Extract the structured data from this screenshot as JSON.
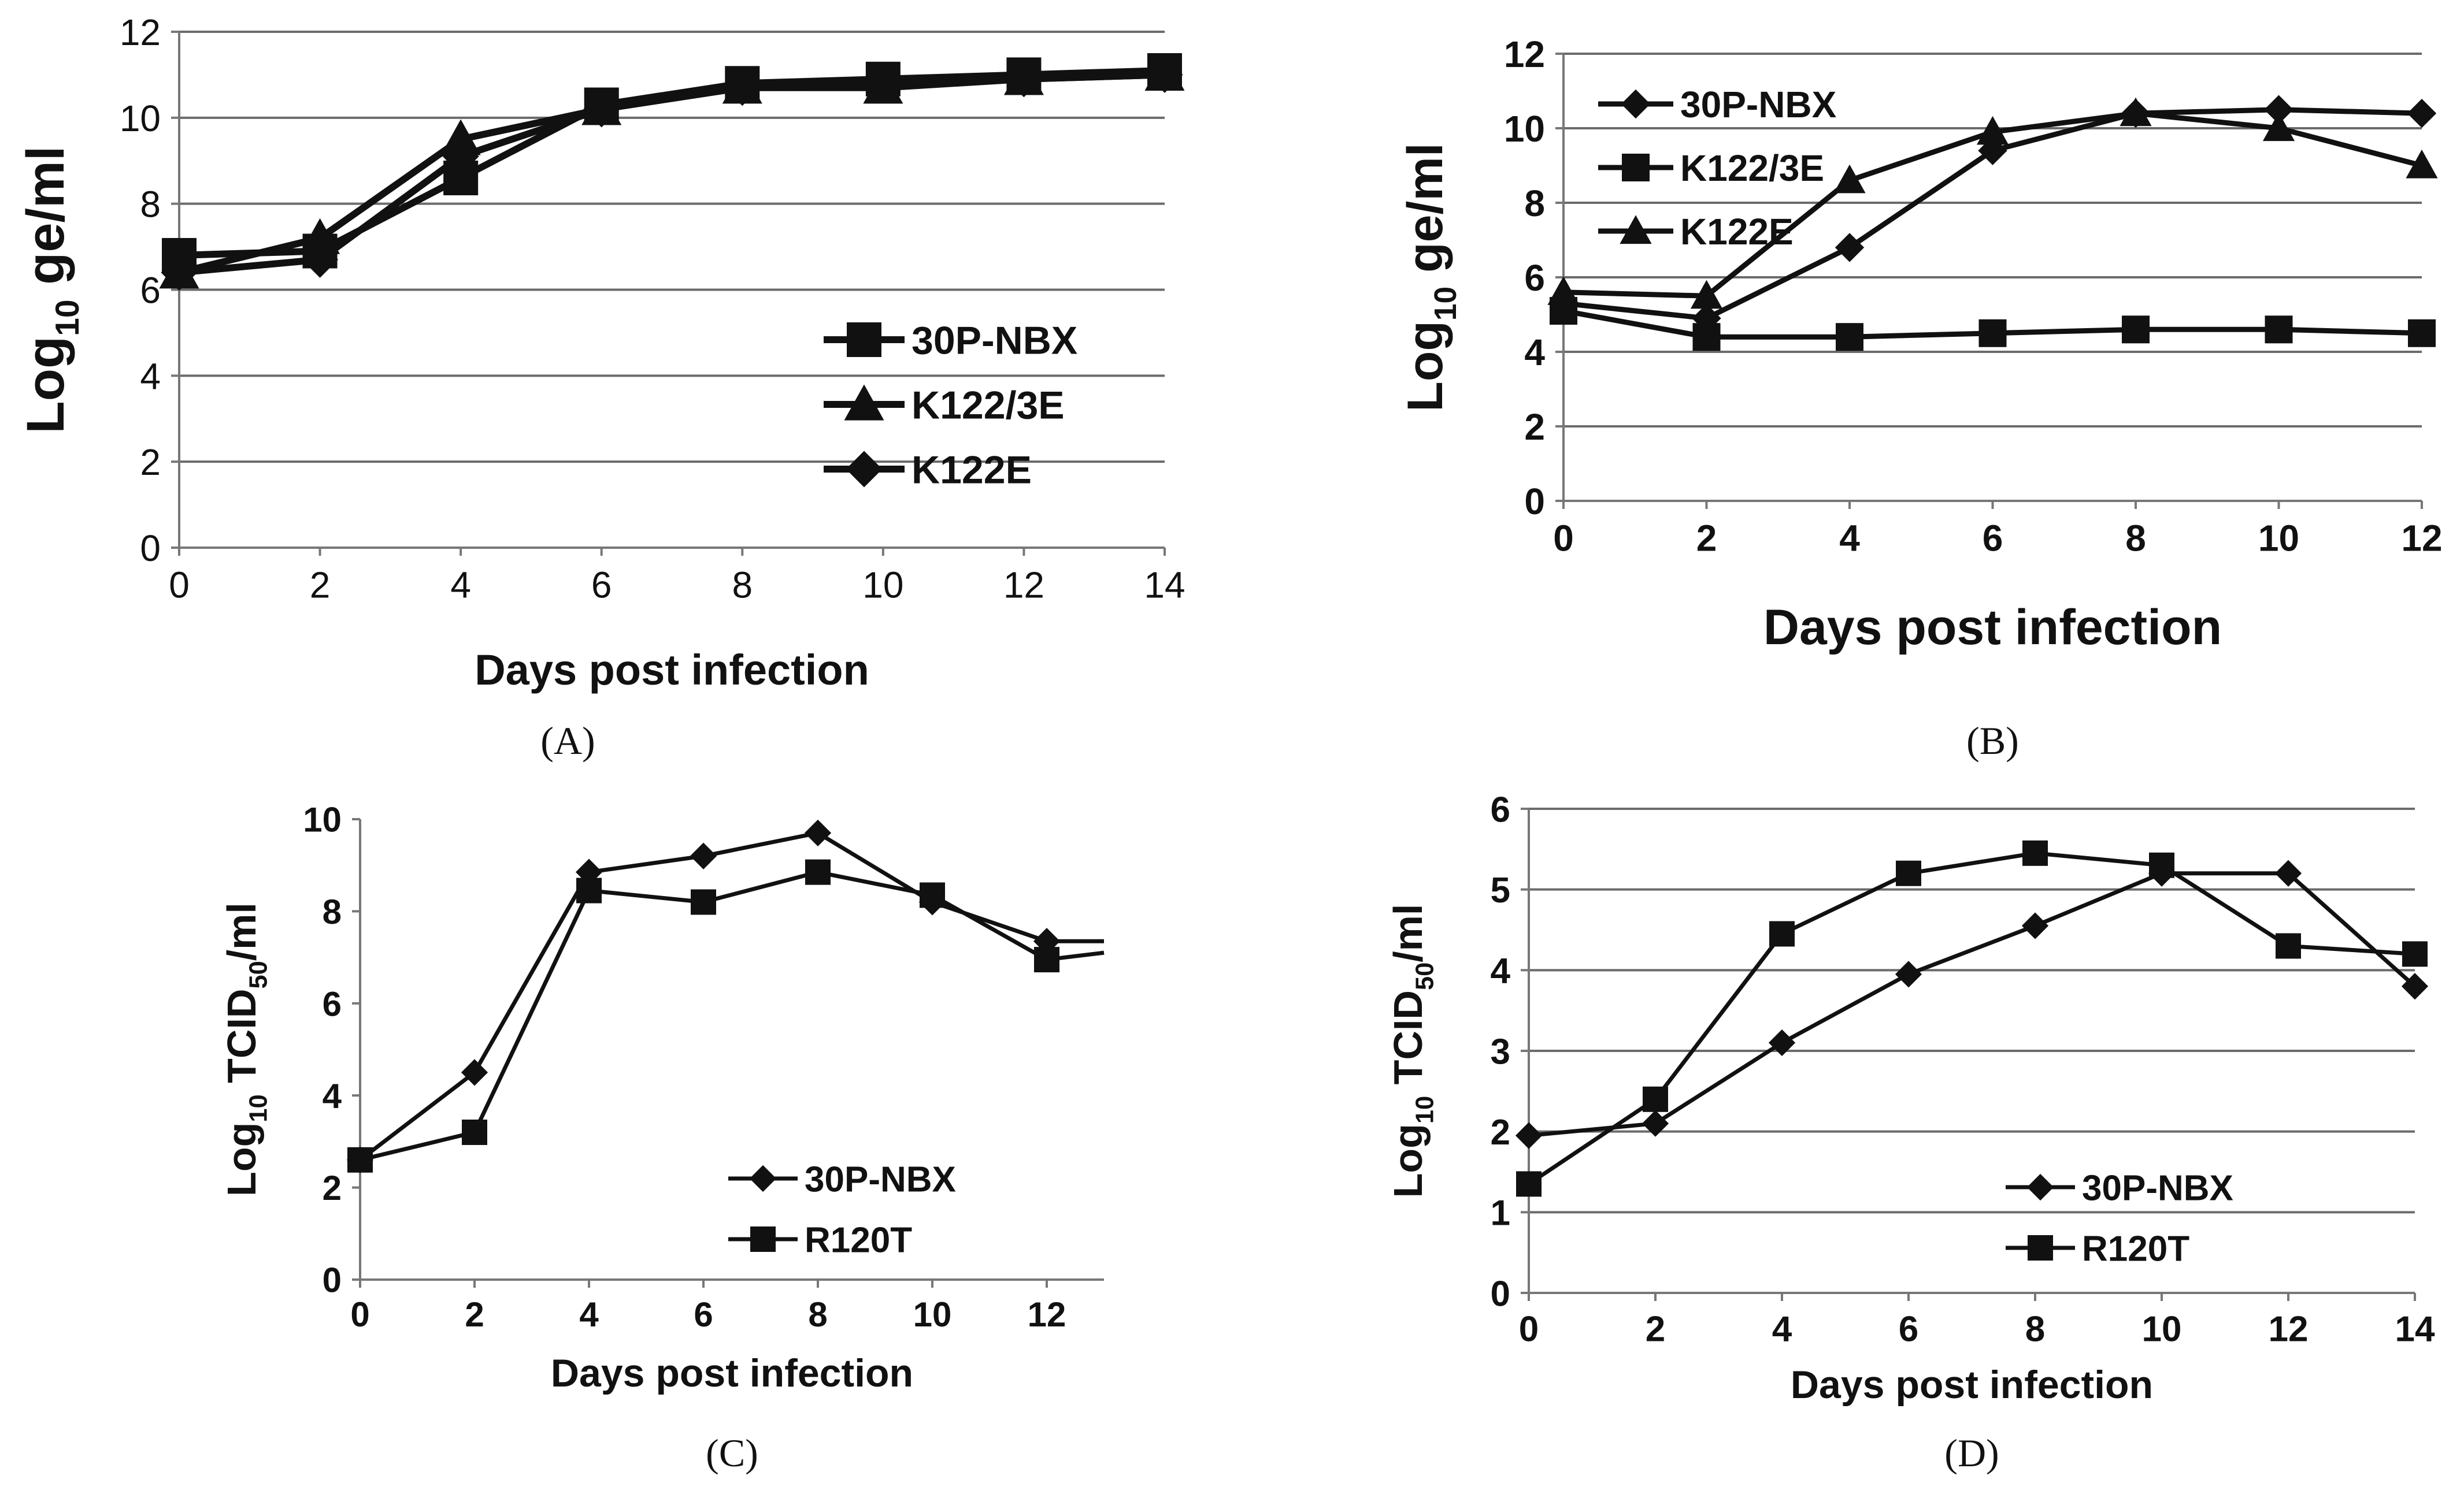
{
  "chart_data": [
    {
      "type": "line",
      "panel": "(A)",
      "xlabel": "Days post infection",
      "ylabel": {
        "base": "Log",
        "sub": "10",
        "rest": " ge/ml"
      },
      "xlim": [
        0,
        14
      ],
      "ylim": [
        0,
        12
      ],
      "xticks": [
        0,
        2,
        4,
        6,
        8,
        10,
        12,
        14
      ],
      "yticks": [
        0,
        2,
        4,
        6,
        8,
        10,
        12
      ],
      "grid": true,
      "legend": "bottom-right",
      "x": [
        0,
        2,
        4,
        6,
        8,
        10,
        12,
        14
      ],
      "series": [
        {
          "name": "30P-NBX",
          "marker": "square",
          "values": [
            6.8,
            6.9,
            8.6,
            10.3,
            10.8,
            10.9,
            11.0,
            11.1
          ]
        },
        {
          "name": "K122/3E",
          "marker": "triangle",
          "values": [
            6.4,
            7.2,
            9.5,
            10.2,
            10.7,
            10.7,
            10.9,
            11.0
          ]
        },
        {
          "name": "K122E",
          "marker": "diamond",
          "values": [
            6.4,
            6.7,
            9.1,
            10.2,
            10.7,
            10.8,
            10.9,
            11.0
          ]
        }
      ]
    },
    {
      "type": "line",
      "panel": "(B)",
      "xlabel": "Days post infection",
      "ylabel": {
        "base": "Log",
        "sub": "10",
        "rest": " ge/ml"
      },
      "xlim": [
        0,
        12
      ],
      "ylim": [
        0,
        12
      ],
      "xticks": [
        0,
        2,
        4,
        6,
        8,
        10,
        12
      ],
      "yticks": [
        0,
        2,
        4,
        6,
        8,
        10,
        12
      ],
      "grid": true,
      "legend": "top-left",
      "x": [
        0,
        2,
        4,
        6,
        8,
        10,
        12
      ],
      "series": [
        {
          "name": "30P-NBX",
          "marker": "diamond",
          "values": [
            5.3,
            4.9,
            6.8,
            9.4,
            10.4,
            10.5,
            10.4
          ]
        },
        {
          "name": "K122/3E",
          "marker": "square",
          "values": [
            5.1,
            4.4,
            4.4,
            4.5,
            4.6,
            4.6,
            4.5
          ]
        },
        {
          "name": "K122E",
          "marker": "triangle",
          "values": [
            5.6,
            5.5,
            8.6,
            9.9,
            10.4,
            10.0,
            9.0
          ]
        }
      ]
    },
    {
      "type": "line",
      "panel": "(C)",
      "xlabel": "Days post infection",
      "ylabel": {
        "base": "Log",
        "sub": "10",
        "rest": " TCID",
        "sub2": "50",
        "rest2": "/ml"
      },
      "xlim": [
        0,
        13
      ],
      "ylim": [
        0,
        10
      ],
      "xticks": [
        0,
        2,
        4,
        6,
        8,
        10,
        12
      ],
      "yticks": [
        0,
        2,
        4,
        6,
        8,
        10
      ],
      "grid": false,
      "legend": "bottom-right",
      "x": [
        0,
        2,
        4,
        6,
        8,
        10,
        12,
        13
      ],
      "series": [
        {
          "name": "30P-NBX",
          "marker": "diamond",
          "values": [
            2.6,
            4.5,
            8.85,
            9.2,
            9.7,
            8.2,
            7.35,
            7.35
          ]
        },
        {
          "name": "R120T",
          "marker": "square",
          "values": [
            2.6,
            3.2,
            8.45,
            8.2,
            8.85,
            8.35,
            6.95,
            7.1
          ]
        }
      ],
      "marker_points": 7
    },
    {
      "type": "line",
      "panel": "(D)",
      "xlabel": "Days post infection",
      "ylabel": {
        "base": "Log",
        "sub": "10",
        "rest": " TCID",
        "sub2": "50",
        "rest2": "/ml"
      },
      "xlim": [
        0,
        14
      ],
      "ylim": [
        0,
        6
      ],
      "xticks": [
        0,
        2,
        4,
        6,
        8,
        10,
        12,
        14
      ],
      "yticks": [
        0,
        1,
        2,
        3,
        4,
        5,
        6
      ],
      "grid": true,
      "legend": "bottom-right",
      "x": [
        0,
        2,
        4,
        6,
        8,
        10,
        12,
        14
      ],
      "series": [
        {
          "name": "30P-NBX",
          "marker": "diamond",
          "values": [
            1.95,
            2.1,
            3.1,
            3.95,
            4.55,
            5.2,
            5.2,
            3.8
          ]
        },
        {
          "name": "R120T",
          "marker": "square",
          "values": [
            1.35,
            2.4,
            4.45,
            5.2,
            5.45,
            5.3,
            4.3,
            4.2
          ]
        }
      ]
    }
  ]
}
